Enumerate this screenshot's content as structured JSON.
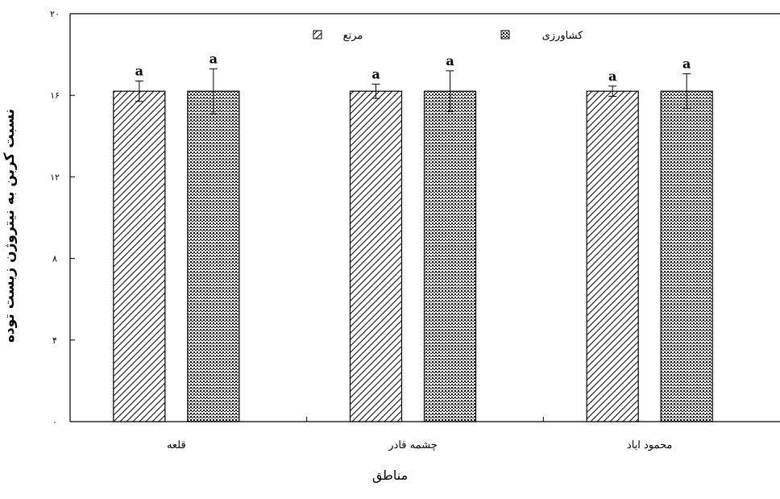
{
  "chart_data": {
    "type": "bar",
    "title": "",
    "xlabel": "مناطق",
    "ylabel": "نسبت کربن به نیتروژن زیست توده",
    "ylim": [
      0,
      20
    ],
    "yticks": [
      "۰",
      "۴",
      "۸",
      "۱۲",
      "۱۶",
      "۲۰"
    ],
    "ytick_values": [
      0,
      4,
      8,
      12,
      16,
      20
    ],
    "categories": [
      "قلعه",
      "چشمه قادر",
      "محمود اباد"
    ],
    "series": [
      {
        "name": "مرتع",
        "pattern": "hatch",
        "values": [
          16.2,
          16.2,
          16.2
        ],
        "errors": [
          0.5,
          0.35,
          0.25
        ],
        "labels": [
          "a",
          "a",
          "a"
        ]
      },
      {
        "name": "کشاورزی",
        "pattern": "dots",
        "values": [
          16.2,
          16.2,
          16.2
        ],
        "errors": [
          1.1,
          1.0,
          0.85
        ],
        "labels": [
          "a",
          "a",
          "a"
        ]
      }
    ],
    "legend_position": "top",
    "grid": false,
    "colors": {
      "bar_fill": "#ffffff",
      "pattern": "#000000",
      "axis": "#000000"
    }
  }
}
